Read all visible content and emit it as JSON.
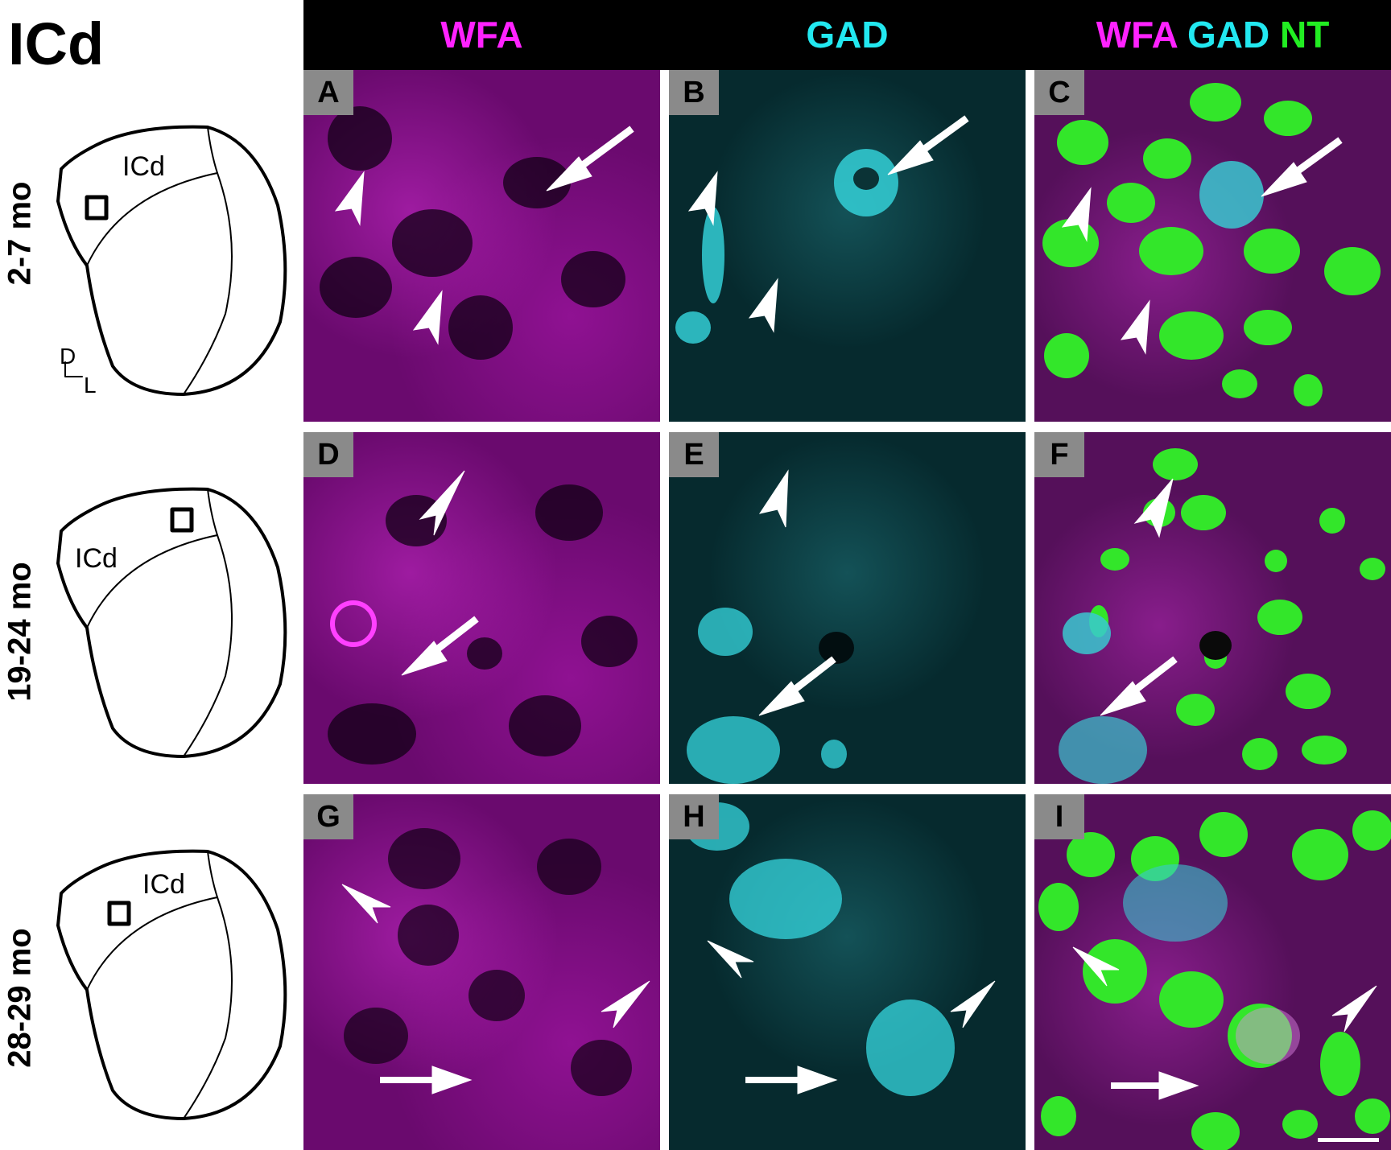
{
  "figure": {
    "title": "ICd",
    "columns": [
      {
        "label": "",
        "parts": [
          {
            "text": "WFA",
            "color": "#ff22ff"
          }
        ]
      },
      {
        "label": "",
        "parts": [
          {
            "text": "GAD",
            "color": "#22e8f0"
          }
        ]
      },
      {
        "label": "",
        "parts": [
          {
            "text": "WFA ",
            "color": "#ff22ff"
          },
          {
            "text": "GAD ",
            "color": "#22e8f0"
          },
          {
            "text": "NT",
            "color": "#22ee22"
          }
        ]
      }
    ],
    "rows": [
      {
        "age_label": "2-7 mo",
        "diagram_label": "ICd",
        "panels": [
          "A",
          "B",
          "C"
        ]
      },
      {
        "age_label": "19-24 mo",
        "diagram_label": "ICd",
        "panels": [
          "D",
          "E",
          "F"
        ]
      },
      {
        "age_label": "28-29 mo",
        "diagram_label": "ICd",
        "panels": [
          "G",
          "H",
          "I"
        ]
      }
    ],
    "orientation": {
      "dorsal": "D",
      "lateral": "L"
    },
    "colors": {
      "wfa": "#ff22ff",
      "gad": "#22e8f0",
      "nt": "#22ee22"
    }
  }
}
